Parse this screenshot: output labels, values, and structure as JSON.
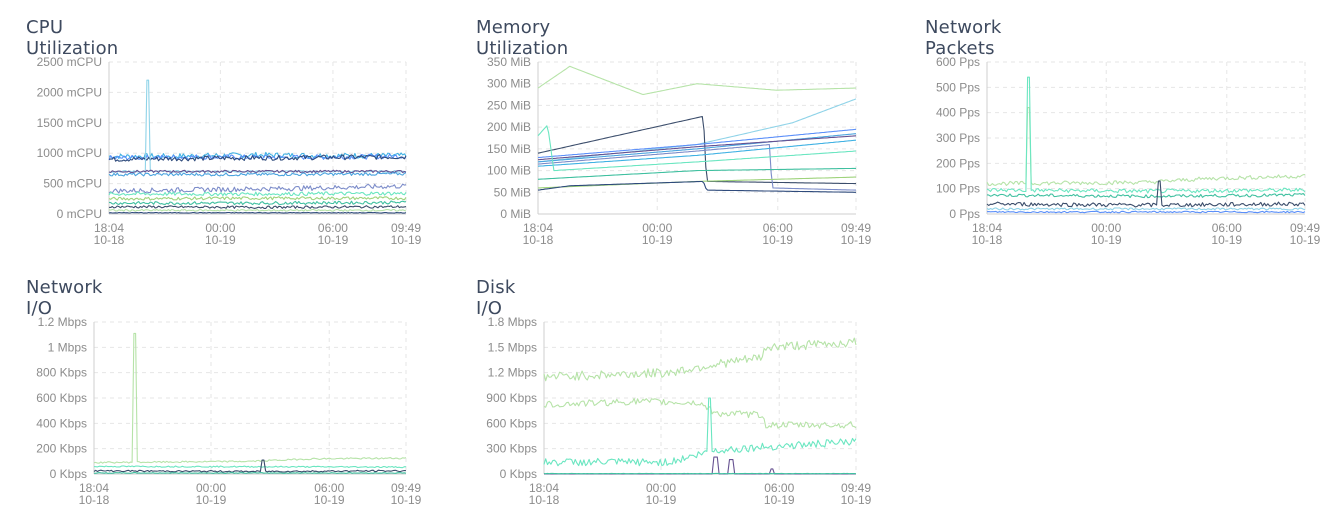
{
  "palette": [
    "#2f4b7c",
    "#665191",
    "#a05195",
    "#3fb1e3",
    "#6be6c1",
    "#9fd37c",
    "#4aa3df",
    "#5b8ff9",
    "#8fd3e8",
    "#b6e3a8",
    "#7c8cc9",
    "#40c0a0",
    "#3b4d6b",
    "#c2e6b0"
  ],
  "chart_data": [
    {
      "name": "cpu",
      "type": "line",
      "title": "CPU Utilization",
      "unit": "mCPU",
      "ylim": [
        0,
        2500
      ],
      "yticks": [
        "2500 mCPU",
        "2000 mCPU",
        "1500 mCPU",
        "1000 mCPU",
        "500 mCPU",
        "0 mCPU"
      ],
      "xticks": [
        {
          "time": "18:04",
          "date": "10-18",
          "pos": 0.0
        },
        {
          "time": "00:00",
          "date": "10-19",
          "pos": 0.375
        },
        {
          "time": "06:00",
          "date": "10-19",
          "pos": 0.754
        },
        {
          "time": "09:49",
          "date": "10-19",
          "pos": 1.0
        }
      ],
      "grid": true,
      "series": [
        {
          "color": "#3fb1e3",
          "points": [
            [
              0,
              950
            ],
            [
              0.2,
              950
            ],
            [
              0.5,
              970
            ],
            [
              0.8,
              960
            ],
            [
              1,
              960
            ]
          ],
          "noise": 45
        },
        {
          "color": "#5b8ff9",
          "points": [
            [
              0,
              920
            ],
            [
              0.3,
              940
            ],
            [
              0.6,
              930
            ],
            [
              1,
              950
            ]
          ],
          "noise": 40
        },
        {
          "color": "#2f4b7c",
          "points": [
            [
              0,
              900
            ],
            [
              0.4,
              920
            ],
            [
              0.7,
              930
            ],
            [
              1,
              940
            ]
          ],
          "noise": 40
        },
        {
          "color": "#8fd3e8",
          "points": [
            [
              0,
              2200
            ],
            [
              1,
              2200
            ]
          ],
          "spike": true,
          "at": 0.13,
          "base": 700
        },
        {
          "color": "#665191",
          "points": [
            [
              0,
              700
            ],
            [
              0.5,
              700
            ],
            [
              1,
              700
            ]
          ],
          "noise": 20
        },
        {
          "color": "#4aa3df",
          "points": [
            [
              0,
              650
            ],
            [
              0.5,
              650
            ],
            [
              1,
              660
            ]
          ],
          "noise": 25
        },
        {
          "color": "#7c8cc9",
          "points": [
            [
              0,
              380
            ],
            [
              0.3,
              400
            ],
            [
              0.6,
              420
            ],
            [
              1,
              460
            ]
          ],
          "noise": 40
        },
        {
          "color": "#6be6c1",
          "points": [
            [
              0,
              330
            ],
            [
              0.5,
              330
            ],
            [
              1,
              340
            ]
          ],
          "noise": 30
        },
        {
          "color": "#9fd37c",
          "points": [
            [
              0,
              250
            ],
            [
              0.5,
              260
            ],
            [
              1,
              260
            ]
          ],
          "noise": 25
        },
        {
          "color": "#40c0a0",
          "points": [
            [
              0,
              180
            ],
            [
              0.5,
              180
            ],
            [
              1,
              190
            ]
          ],
          "noise": 25
        },
        {
          "color": "#3b4d6b",
          "points": [
            [
              0,
              120
            ],
            [
              0.5,
              110
            ],
            [
              1,
              120
            ]
          ],
          "noise": 20
        },
        {
          "color": "#b6e3a8",
          "points": [
            [
              0,
              60
            ],
            [
              1,
              60
            ]
          ],
          "noise": 15
        },
        {
          "color": "#2f4b7c",
          "points": [
            [
              0,
              20
            ],
            [
              1,
              20
            ]
          ],
          "noise": 5
        }
      ]
    },
    {
      "name": "memory",
      "type": "line",
      "title": "Memory Utilization",
      "unit": "MiB",
      "ylim": [
        0,
        350
      ],
      "yticks": [
        "350 MiB",
        "300 MiB",
        "250 MiB",
        "200 MiB",
        "150 MiB",
        "100 MiB",
        "50 MiB",
        "0 MiB"
      ],
      "xticks": [
        {
          "time": "18:04",
          "date": "10-18",
          "pos": 0.0
        },
        {
          "time": "00:00",
          "date": "10-19",
          "pos": 0.375
        },
        {
          "time": "06:00",
          "date": "10-19",
          "pos": 0.754
        },
        {
          "time": "09:49",
          "date": "10-19",
          "pos": 1.0
        }
      ],
      "grid": true,
      "series": [
        {
          "color": "#b6e3a8",
          "points": [
            [
              0,
              290
            ],
            [
              0.1,
              340
            ],
            [
              0.33,
              275
            ],
            [
              0.5,
              300
            ],
            [
              0.75,
              285
            ],
            [
              1,
              290
            ]
          ]
        },
        {
          "color": "#8fd3e8",
          "points": [
            [
              0,
              120
            ],
            [
              0.5,
              160
            ],
            [
              0.8,
              210
            ],
            [
              1,
              265
            ]
          ]
        },
        {
          "color": "#3b4d6b",
          "points": [
            [
              0,
              140
            ],
            [
              0.52,
              225
            ],
            [
              0.53,
              75
            ],
            [
              1,
              70
            ]
          ]
        },
        {
          "color": "#5b8ff9",
          "points": [
            [
              0,
              130
            ],
            [
              0.5,
              160
            ],
            [
              1,
              195
            ]
          ]
        },
        {
          "color": "#4aa3df",
          "points": [
            [
              0,
              120
            ],
            [
              0.5,
              150
            ],
            [
              1,
              185
            ]
          ]
        },
        {
          "color": "#665191",
          "points": [
            [
              0,
              125
            ],
            [
              0.5,
              155
            ],
            [
              1,
              180
            ]
          ]
        },
        {
          "color": "#7c8cc9",
          "points": [
            [
              0,
              115
            ],
            [
              0.5,
              145
            ],
            [
              0.73,
              160
            ],
            [
              0.735,
              60
            ],
            [
              1,
              55
            ]
          ]
        },
        {
          "color": "#3fb1e3",
          "points": [
            [
              0,
              110
            ],
            [
              0.5,
              135
            ],
            [
              1,
              170
            ]
          ]
        },
        {
          "color": "#6be6c1",
          "points": [
            [
              0,
              180
            ],
            [
              0.03,
              205
            ],
            [
              0.05,
              100
            ],
            [
              0.5,
              120
            ],
            [
              1,
              145
            ]
          ]
        },
        {
          "color": "#40c0a0",
          "points": [
            [
              0,
              80
            ],
            [
              0.5,
              100
            ],
            [
              1,
              105
            ]
          ]
        },
        {
          "color": "#9fd37c",
          "points": [
            [
              0,
              60
            ],
            [
              0.5,
              75
            ],
            [
              1,
              85
            ]
          ]
        },
        {
          "color": "#2f4b7c",
          "points": [
            [
              0,
              55
            ],
            [
              0.1,
              65
            ],
            [
              0.52,
              75
            ],
            [
              0.53,
              55
            ],
            [
              1,
              50
            ]
          ]
        }
      ]
    },
    {
      "name": "packets",
      "type": "line",
      "title": "Network Packets",
      "unit": "Pps",
      "ylim": [
        0,
        600
      ],
      "yticks": [
        "600 Pps",
        "500 Pps",
        "400 Pps",
        "300 Pps",
        "200 Pps",
        "100 Pps",
        "0 Pps"
      ],
      "xticks": [
        {
          "time": "18:04",
          "date": "10-18",
          "pos": 0.0
        },
        {
          "time": "00:00",
          "date": "10-19",
          "pos": 0.375
        },
        {
          "time": "06:00",
          "date": "10-19",
          "pos": 0.754
        },
        {
          "time": "09:49",
          "date": "10-19",
          "pos": 1.0
        }
      ],
      "grid": true,
      "series": [
        {
          "color": "#b6e3a8",
          "points": [
            [
              0,
              120
            ],
            [
              0.5,
              125
            ],
            [
              0.7,
              140
            ],
            [
              1,
              150
            ]
          ],
          "noise": 8,
          "spike": true,
          "at": 0.13,
          "peak": 420
        },
        {
          "color": "#6be6c1",
          "points": [
            [
              0,
              95
            ],
            [
              0.5,
              90
            ],
            [
              1,
              95
            ]
          ],
          "noise": 8,
          "spike": true,
          "at": 0.13,
          "peak": 540
        },
        {
          "color": "#40c0a0",
          "points": [
            [
              0,
              75
            ],
            [
              0.5,
              70
            ],
            [
              1,
              75
            ]
          ],
          "noise": 6
        },
        {
          "color": "#3b4d6b",
          "points": [
            [
              0,
              40
            ],
            [
              0.5,
              35
            ],
            [
              1,
              40
            ]
          ],
          "noise": 8,
          "spike": true,
          "at": 0.54,
          "peak": 130
        },
        {
          "color": "#8fd3e8",
          "points": [
            [
              0,
              20
            ],
            [
              1,
              20
            ]
          ],
          "noise": 4
        },
        {
          "color": "#5b8ff9",
          "points": [
            [
              0,
              8
            ],
            [
              1,
              8
            ]
          ],
          "noise": 3
        }
      ]
    },
    {
      "name": "netio",
      "type": "line",
      "title": "Network I/O",
      "unit": "Kbps",
      "ylim": [
        0,
        1200
      ],
      "yticks": [
        "1.2 Mbps",
        "1 Mbps",
        "800 Kbps",
        "600 Kbps",
        "400 Kbps",
        "200 Kbps",
        "0 Kbps"
      ],
      "xticks": [
        {
          "time": "18:04",
          "date": "10-18",
          "pos": 0.0
        },
        {
          "time": "00:00",
          "date": "10-19",
          "pos": 0.375
        },
        {
          "time": "06:00",
          "date": "10-19",
          "pos": 0.754
        },
        {
          "time": "09:49",
          "date": "10-19",
          "pos": 1.0
        }
      ],
      "grid": true,
      "series": [
        {
          "color": "#b6e3a8",
          "points": [
            [
              0,
              90
            ],
            [
              0.5,
              100
            ],
            [
              0.7,
              120
            ],
            [
              1,
              125
            ]
          ],
          "noise": 6,
          "spike": true,
          "at": 0.13,
          "peak": 1110
        },
        {
          "color": "#6be6c1",
          "points": [
            [
              0,
              60
            ],
            [
              1,
              55
            ]
          ],
          "noise": 5
        },
        {
          "color": "#3b4d6b",
          "points": [
            [
              0,
              25
            ],
            [
              0.5,
              20
            ],
            [
              1,
              25
            ]
          ],
          "noise": 6,
          "spike": true,
          "at": 0.54,
          "peak": 110
        },
        {
          "color": "#40c0a0",
          "points": [
            [
              0,
              8
            ],
            [
              1,
              8
            ]
          ],
          "noise": 3
        }
      ]
    },
    {
      "name": "diskio",
      "type": "line",
      "title": "Disk I/O",
      "unit": "Kbps",
      "ylim": [
        0,
        1800
      ],
      "yticks": [
        "1.8 Mbps",
        "1.5 Mbps",
        "1.2 Mbps",
        "900 Kbps",
        "600 Kbps",
        "300 Kbps",
        "0 Kbps"
      ],
      "xticks": [
        {
          "time": "18:04",
          "date": "10-18",
          "pos": 0.0
        },
        {
          "time": "00:00",
          "date": "10-19",
          "pos": 0.375
        },
        {
          "time": "06:00",
          "date": "10-19",
          "pos": 0.754
        },
        {
          "time": "09:49",
          "date": "10-19",
          "pos": 1.0
        }
      ],
      "grid": true,
      "series": [
        {
          "color": "#b6e3a8",
          "points": [
            [
              0,
              1150
            ],
            [
              0.4,
              1200
            ],
            [
              0.55,
              1300
            ],
            [
              0.7,
              1380
            ],
            [
              0.71,
              1500
            ],
            [
              1,
              1560
            ]
          ],
          "noise": 55
        },
        {
          "color": "#b6e3a8",
          "points": [
            [
              0,
              820
            ],
            [
              0.3,
              860
            ],
            [
              0.5,
              840
            ],
            [
              0.55,
              720
            ],
            [
              0.7,
              700
            ],
            [
              0.71,
              580
            ],
            [
              1,
              580
            ]
          ],
          "noise": 40
        },
        {
          "color": "#6be6c1",
          "points": [
            [
              0,
              140
            ],
            [
              0.4,
              140
            ],
            [
              0.55,
              280
            ],
            [
              0.7,
              320
            ],
            [
              1,
              380
            ]
          ],
          "noise": 45,
          "spike": true,
          "at": 0.53,
          "peak": 900
        },
        {
          "color": "#665191",
          "points": [
            [
              0,
              0
            ],
            [
              1,
              0
            ]
          ],
          "bumps": [
            [
              0.55,
              200
            ],
            [
              0.6,
              170
            ],
            [
              0.73,
              60
            ]
          ]
        },
        {
          "color": "#40c0a0",
          "points": [
            [
              0,
              5
            ],
            [
              1,
              5
            ]
          ],
          "noise": 2
        }
      ]
    }
  ]
}
